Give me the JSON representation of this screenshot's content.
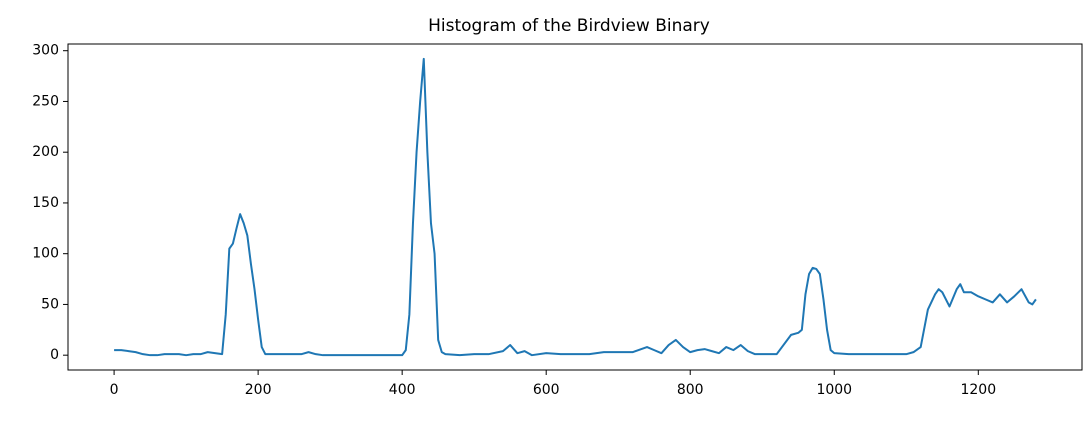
{
  "chart_data": {
    "type": "line",
    "title": "Histogram of the Birdview Binary",
    "color": "#1f77b4",
    "x": [
      0,
      10,
      20,
      30,
      40,
      50,
      60,
      70,
      80,
      90,
      100,
      110,
      120,
      130,
      140,
      150,
      155,
      160,
      165,
      170,
      175,
      180,
      185,
      190,
      195,
      200,
      205,
      210,
      220,
      230,
      240,
      250,
      260,
      270,
      280,
      290,
      300,
      320,
      340,
      360,
      380,
      400,
      405,
      410,
      415,
      420,
      425,
      430,
      435,
      440,
      445,
      450,
      455,
      460,
      480,
      500,
      520,
      540,
      550,
      560,
      570,
      580,
      600,
      620,
      640,
      660,
      680,
      700,
      720,
      740,
      750,
      760,
      770,
      780,
      790,
      800,
      810,
      820,
      830,
      840,
      850,
      860,
      870,
      880,
      890,
      920,
      940,
      950,
      955,
      960,
      965,
      970,
      975,
      980,
      985,
      990,
      995,
      1000,
      1020,
      1040,
      1060,
      1080,
      1100,
      1110,
      1120,
      1130,
      1140,
      1145,
      1150,
      1160,
      1170,
      1175,
      1180,
      1190,
      1200,
      1210,
      1220,
      1230,
      1240,
      1250,
      1260,
      1270,
      1275,
      1280
    ],
    "values": [
      5,
      5,
      4,
      3,
      1,
      0,
      0,
      1,
      1,
      1,
      0,
      1,
      1,
      3,
      2,
      1,
      40,
      105,
      110,
      125,
      139,
      130,
      118,
      90,
      65,
      35,
      8,
      1,
      1,
      1,
      1,
      1,
      1,
      3,
      1,
      0,
      0,
      0,
      0,
      0,
      0,
      0,
      5,
      40,
      130,
      200,
      250,
      292,
      200,
      130,
      100,
      15,
      3,
      1,
      0,
      1,
      1,
      4,
      10,
      2,
      4,
      0,
      2,
      1,
      1,
      1,
      3,
      3,
      3,
      8,
      5,
      2,
      10,
      15,
      8,
      3,
      5,
      6,
      4,
      2,
      8,
      5,
      10,
      4,
      1,
      1,
      20,
      22,
      25,
      60,
      80,
      86,
      85,
      80,
      55,
      25,
      5,
      2,
      1,
      1,
      1,
      1,
      1,
      3,
      8,
      45,
      60,
      65,
      62,
      48,
      65,
      70,
      62,
      62,
      58,
      55,
      52,
      60,
      52,
      58,
      65,
      52,
      50,
      55
    ],
    "xlim": [
      -64,
      1344
    ],
    "ylim": [
      -14.6,
      306.6
    ],
    "xticks": [
      0,
      200,
      400,
      600,
      800,
      1000,
      1200
    ],
    "yticks": [
      0,
      50,
      100,
      150,
      200,
      250,
      300
    ]
  }
}
